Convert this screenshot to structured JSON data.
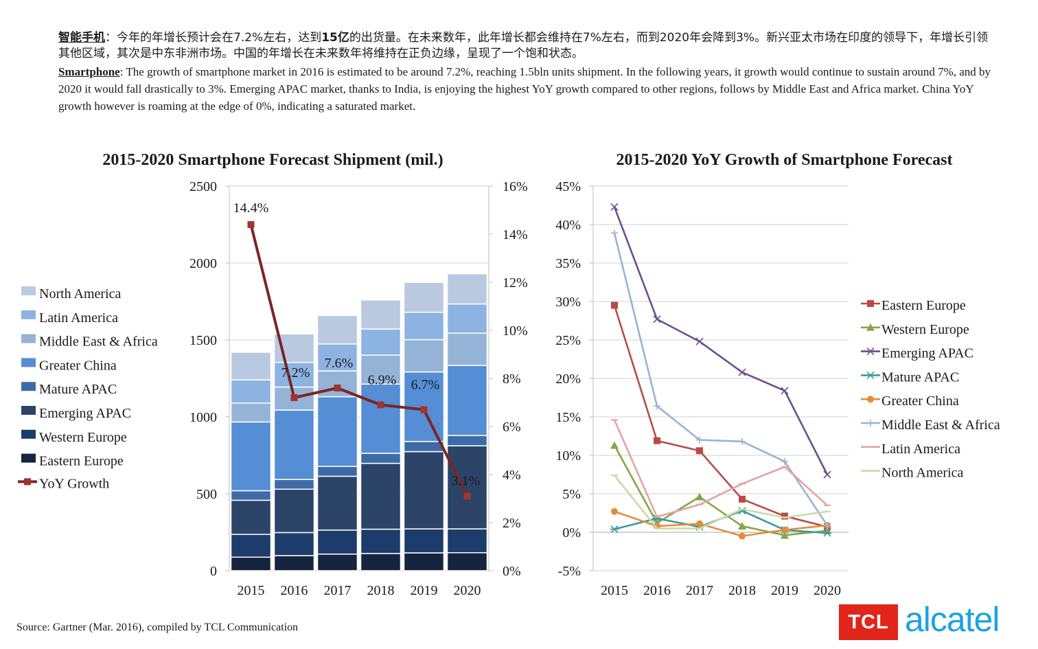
{
  "intro": {
    "zh_label": "智能手机",
    "zh_p1": "：今年的年增长预计会在7.2%左右，达到",
    "zh_hl": "15亿",
    "zh_p2": "的出货量。在未来数年，此年增长都会维持在7%左右，而到2020年会降到3%。新兴亚太市场在印度的领导下，年增长引领其他区域，其次是中东非洲市场。中国的年增长在未来数年将维持在正负边缘，呈现了一个饱和状态。",
    "en_label": "Smartphone",
    "en_text": ": The growth of smartphone market in 2016 is estimated to be around 7.2%, reaching 1.5bln units shipment. In the following years, it growth would continue to sustain around 7%, and by 2020 it would fall drastically to 3%. Emerging APAC market, thanks to India, is enjoying the highest YoY growth compared to other regions, follows by Middle East and Africa market. China YoY growth however is roaming at the edge of 0%, indicating a saturated market."
  },
  "source": "Source: Gartner (Mar. 2016), compiled by TCL Communication",
  "logo": {
    "tcl": "TCL",
    "alcatel": "alcatel",
    "tcl_color": "#e1251b",
    "alcatel_color": "#1aa3e0"
  },
  "chart_data": [
    {
      "type": "bar",
      "stacked": true,
      "title": "2015-2020 Smartphone Forecast Shipment (mil.)",
      "categories": [
        "2015",
        "2016",
        "2017",
        "2018",
        "2019",
        "2020"
      ],
      "ylim": [
        0,
        2500
      ],
      "yticks": [
        "0",
        "500",
        "1000",
        "1500",
        "2000",
        "2500"
      ],
      "y2lim": [
        0,
        16
      ],
      "y2ticks": [
        "0%",
        "2%",
        "4%",
        "6%",
        "8%",
        "10%",
        "12%",
        "14%",
        "16%"
      ],
      "legend_position": "left",
      "series": [
        {
          "name": "Eastern Europe",
          "color": "#16253f",
          "values": [
            88,
            98,
            108,
            112,
            116,
            117
          ]
        },
        {
          "name": "Western Europe",
          "color": "#1c3c6c",
          "values": [
            148,
            150,
            156,
            158,
            156,
            155
          ]
        },
        {
          "name": "Emerging APAC",
          "color": "#2b4468",
          "values": [
            222,
            282,
            350,
            428,
            502,
            540
          ]
        },
        {
          "name": "Mature APAC",
          "color": "#3e6ba8",
          "values": [
            62,
            63,
            64,
            65,
            66,
            67
          ]
        },
        {
          "name": "Greater China",
          "color": "#558ed5",
          "values": [
            447,
            451,
            453,
            450,
            452,
            455
          ]
        },
        {
          "name": "Middle East & Africa",
          "color": "#95b3d7",
          "values": [
            123,
            150,
            168,
            188,
            210,
            210
          ]
        },
        {
          "name": "Latin America",
          "color": "#8db3e2",
          "values": [
            150,
            160,
            175,
            170,
            178,
            190
          ]
        },
        {
          "name": "North America",
          "color": "#b9c9e0",
          "values": [
            180,
            185,
            185,
            189,
            194,
            196
          ]
        }
      ],
      "line": {
        "name": "YoY Growth",
        "axis": "right",
        "color": "#7a2525",
        "values": [
          14.4,
          7.2,
          7.6,
          6.9,
          6.7,
          3.1
        ],
        "labels": [
          "14.4%",
          "7.2%",
          "7.6%",
          "6.9%",
          "6.7%",
          "3.1%"
        ]
      }
    },
    {
      "type": "line",
      "title": "2015-2020 YoY Growth of  Smartphone Forecast",
      "x": [
        "2015",
        "2016",
        "2017",
        "2018",
        "2019",
        "2020"
      ],
      "ylim": [
        -5,
        45
      ],
      "yticks": [
        "-5%",
        "0%",
        "5%",
        "10%",
        "15%",
        "20%",
        "25%",
        "30%",
        "35%",
        "40%",
        "45%"
      ],
      "legend_position": "right",
      "series": [
        {
          "name": "Eastern Europe",
          "color": "#b94a48",
          "marker": "square",
          "values": [
            29.5,
            11.9,
            10.6,
            4.3,
            2.1,
            0.7
          ]
        },
        {
          "name": "Western Europe",
          "color": "#8aa446",
          "marker": "triangle",
          "values": [
            11.3,
            1.2,
            4.6,
            0.8,
            -0.4,
            0.2
          ]
        },
        {
          "name": "Emerging APAC",
          "color": "#6a4f92",
          "marker": "x",
          "values": [
            42.3,
            27.7,
            24.8,
            20.8,
            18.4,
            7.5
          ]
        },
        {
          "name": "Mature APAC",
          "color": "#3a9a9a",
          "marker": "star",
          "values": [
            0.4,
            1.8,
            0.7,
            2.8,
            0.3,
            -0.1
          ]
        },
        {
          "name": "Greater China",
          "color": "#e38d3b",
          "marker": "circle",
          "values": [
            2.7,
            0.8,
            1.1,
            -0.5,
            0.3,
            0.9
          ]
        },
        {
          "name": "Middle East & Africa",
          "color": "#98b3d6",
          "marker": "plus",
          "values": [
            38.9,
            16.4,
            12.0,
            11.8,
            9.2,
            0.9
          ]
        },
        {
          "name": "Latin America",
          "color": "#e3a3a3",
          "marker": "dash",
          "values": [
            14.6,
            2.0,
            3.6,
            6.3,
            8.5,
            3.5
          ]
        },
        {
          "name": "North America",
          "color": "#c7dba7",
          "marker": "dash",
          "values": [
            7.4,
            0.5,
            0.5,
            3.0,
            1.9,
            2.7
          ]
        }
      ]
    }
  ]
}
